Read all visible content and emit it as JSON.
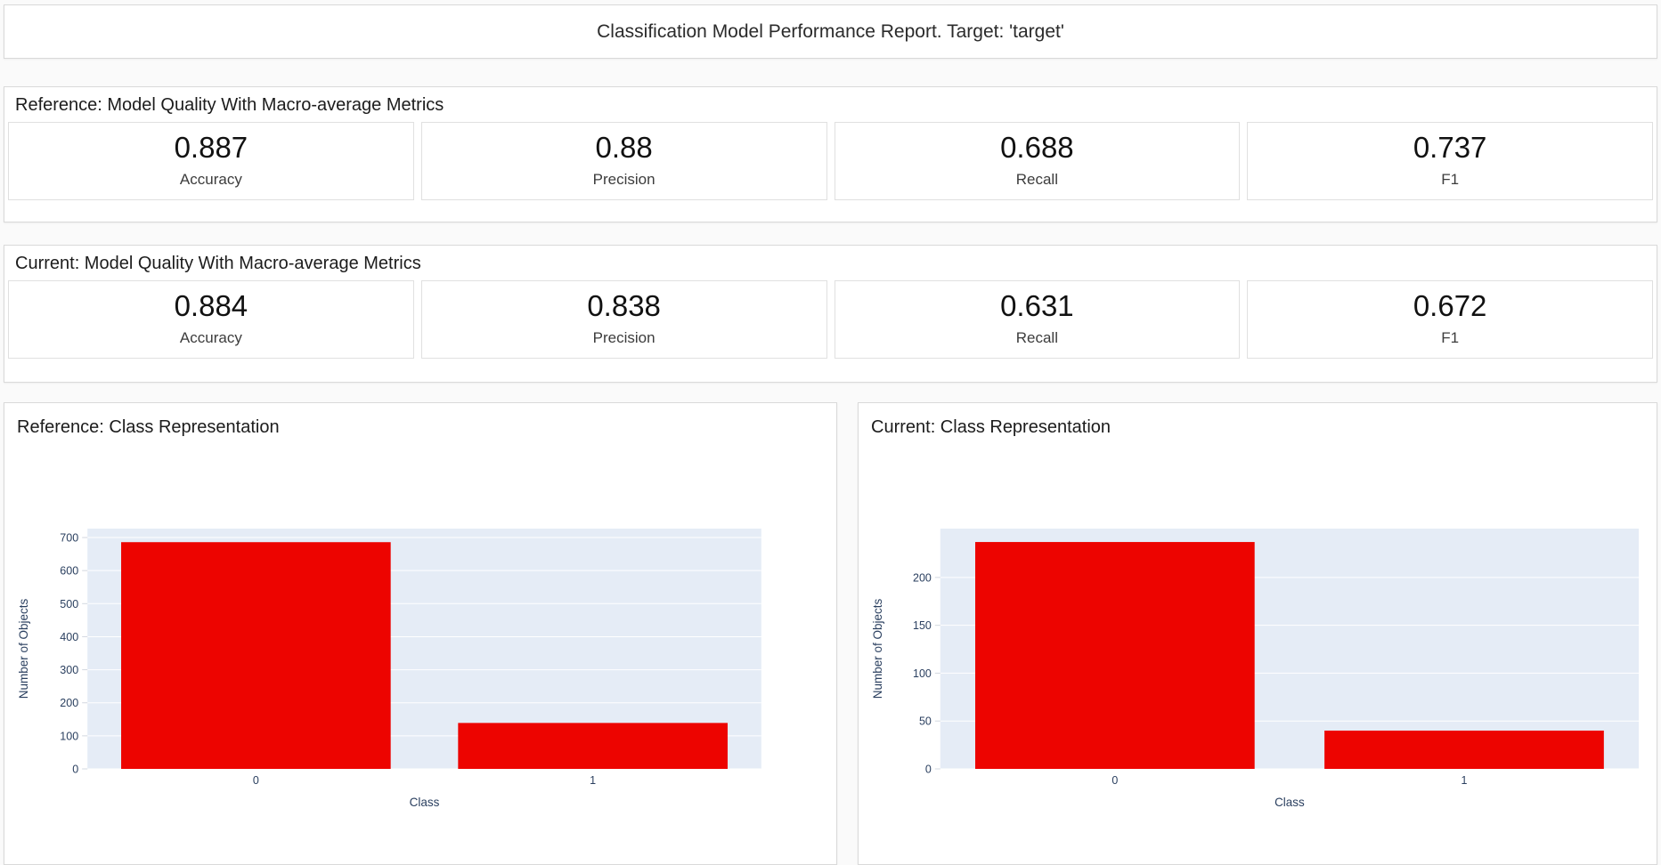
{
  "report": {
    "title": "Classification Model Performance Report. Target: 'target'"
  },
  "reference_metrics": {
    "heading": "Reference: Model Quality With Macro-average Metrics",
    "items": [
      {
        "value": "0.887",
        "label": "Accuracy"
      },
      {
        "value": "0.88",
        "label": "Precision"
      },
      {
        "value": "0.688",
        "label": "Recall"
      },
      {
        "value": "0.737",
        "label": "F1"
      }
    ]
  },
  "current_metrics": {
    "heading": "Current: Model Quality With Macro-average Metrics",
    "items": [
      {
        "value": "0.884",
        "label": "Accuracy"
      },
      {
        "value": "0.838",
        "label": "Precision"
      },
      {
        "value": "0.631",
        "label": "Recall"
      },
      {
        "value": "0.672",
        "label": "F1"
      }
    ]
  },
  "colors": {
    "bar": "#ed0400",
    "plot_background": "#e5ecf6",
    "grid": "#ffffff",
    "axis_text": "#2a3f5f",
    "card_border": "#d9d9d9"
  },
  "chart_data": [
    {
      "type": "bar",
      "title": "Reference: Class Representation",
      "categories": [
        "0",
        "1"
      ],
      "values": [
        686,
        139
      ],
      "xlabel": "Class",
      "ylabel": "Number of Objects",
      "ylim": [
        0,
        727
      ],
      "yticks": [
        0,
        100,
        200,
        300,
        400,
        500,
        600,
        700
      ],
      "grid": true,
      "legend": "none",
      "bar_color": "#ed0400",
      "plot_bg": "#e5ecf6"
    },
    {
      "type": "bar",
      "title": "Current: Class Representation",
      "categories": [
        "0",
        "1"
      ],
      "values": [
        237,
        40
      ],
      "xlabel": "Class",
      "ylabel": "Number of Objects",
      "ylim": [
        0,
        251
      ],
      "yticks": [
        0,
        50,
        100,
        150,
        200
      ],
      "grid": true,
      "legend": "none",
      "bar_color": "#ed0400",
      "plot_bg": "#e5ecf6"
    }
  ]
}
